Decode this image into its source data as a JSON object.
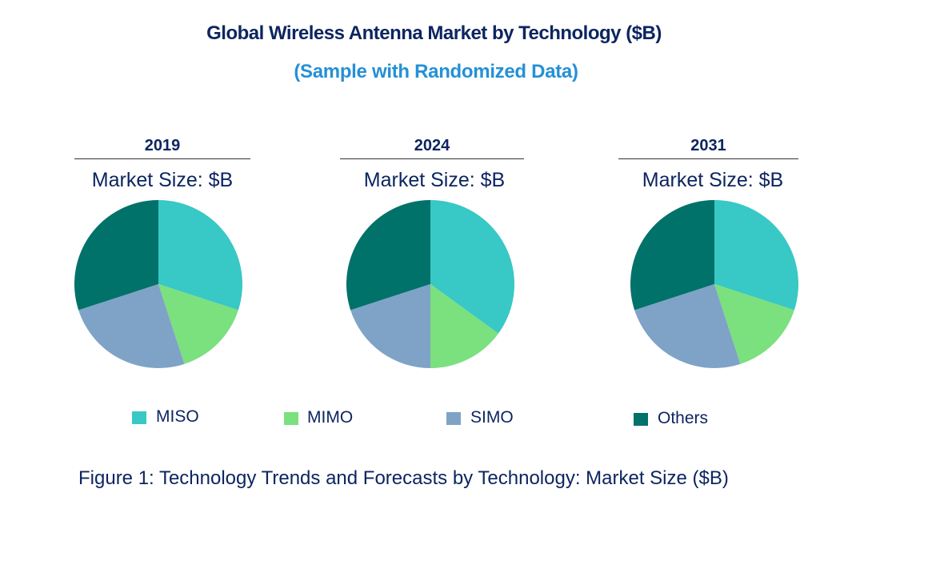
{
  "chart_data": {
    "type": "pie",
    "title": "Global Wireless Antenna Market by  Technology ($B)",
    "subtitle": "(Sample with Randomized Data)",
    "legend": {
      "placement": "bottom",
      "entries": [
        {
          "name": "MISO",
          "color": "#38c8c5"
        },
        {
          "name": "MIMO",
          "color": "#7be07e"
        },
        {
          "name": "SIMO",
          "color": "#7fa3c7"
        },
        {
          "name": "Others",
          "color": "#00726a"
        }
      ]
    },
    "charts": [
      {
        "year": "2019",
        "subtitle": "Market Size: $B",
        "values": [
          30,
          15,
          25,
          30
        ]
      },
      {
        "year": "2024",
        "subtitle": "Market Size: $B",
        "values": [
          35,
          15,
          20,
          30
        ]
      },
      {
        "year": "2031",
        "subtitle": "Market Size: $B",
        "values": [
          30,
          15,
          25,
          30
        ]
      }
    ],
    "caption": "Figure 1: Technology Trends and Forecasts by Technology: Market Size ($B)"
  }
}
